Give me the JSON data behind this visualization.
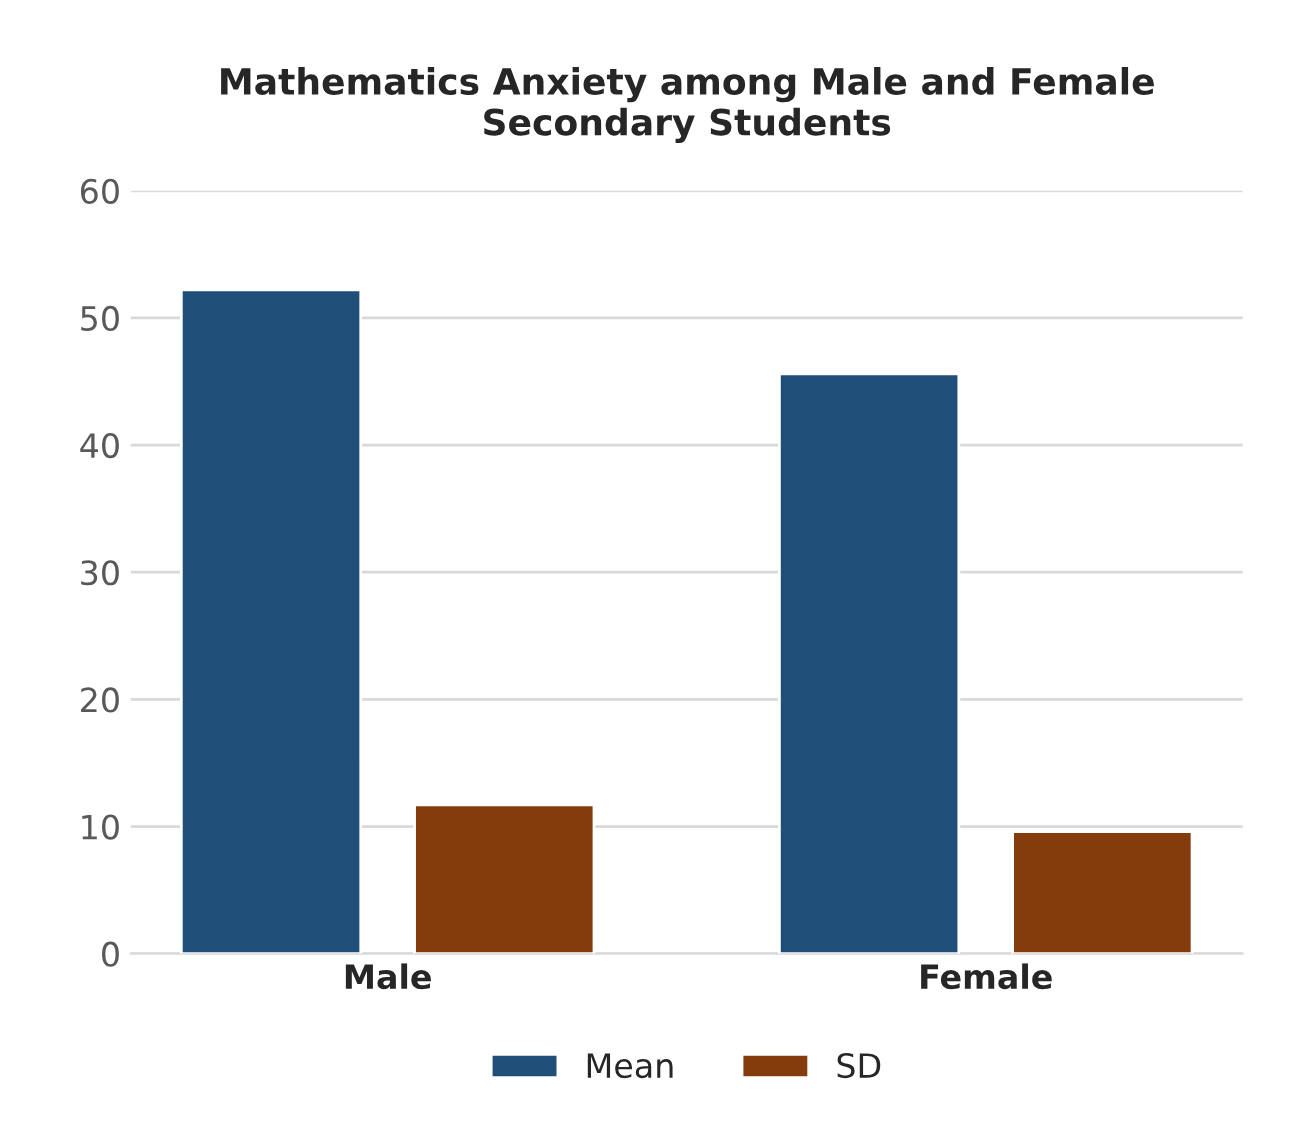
{
  "chart_data": {
    "type": "bar",
    "title": "Mathematics Anxiety among Male and Female\nSecondary Students",
    "categories": [
      "Male",
      "Female"
    ],
    "series": [
      {
        "name": "Mean",
        "color": "#1f4e79",
        "values": [
          52.2,
          45.6
        ]
      },
      {
        "name": "SD",
        "color": "#843c0c",
        "values": [
          11.7,
          9.6
        ]
      }
    ],
    "ylim": [
      0,
      60
    ],
    "yticks": [
      0,
      10,
      20,
      30,
      40,
      50,
      60
    ],
    "grid": "y",
    "legend": "bottom"
  }
}
